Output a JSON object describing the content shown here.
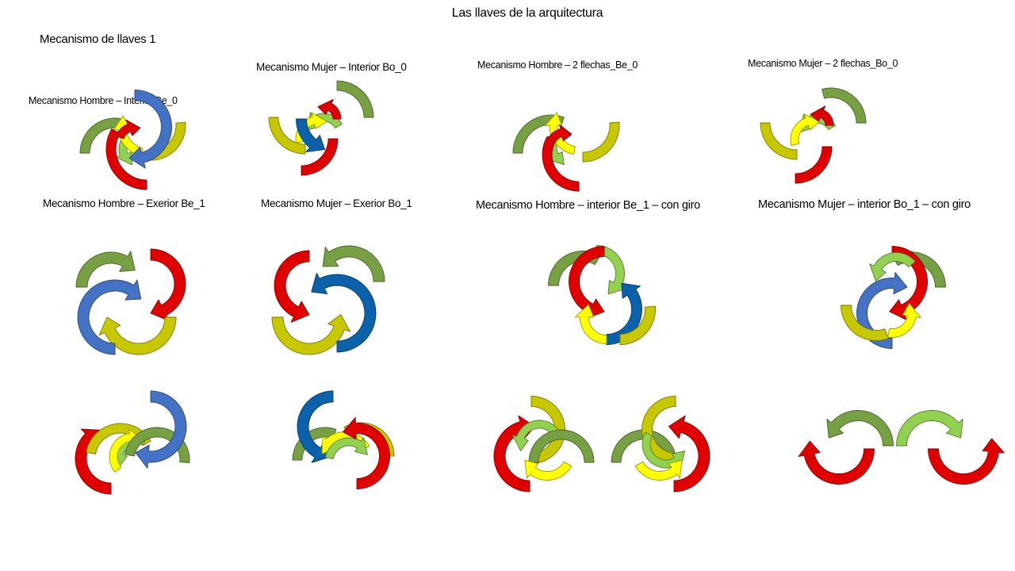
{
  "title": "Las llaves de la arquitectura",
  "subtitle": "Mecanismo de llaves 1",
  "colors": {
    "green": "#77a043",
    "light_green": "#92d050",
    "yellow": "#ffff00",
    "olive_yellow": "#c8c800",
    "red": "#e00000",
    "blue": "#4472c4",
    "dark_blue": "#0b62aa"
  },
  "mechanisms": [
    {
      "label": "Mecanismo Hombre – Interior Be_0"
    },
    {
      "label": "Mecanismo Mujer – Interior Bo_0"
    },
    {
      "label": "Mecanismo Hombre – 2 flechas_Be_0"
    },
    {
      "label": "Mecanismo Mujer – 2 flechas_Bo_0"
    },
    {
      "label": "Mecanismo Hombre – Exerior Be_1"
    },
    {
      "label": "Mecanismo Mujer – Exerior Bo_1"
    },
    {
      "label": "Mecanismo Hombre – interior Be_1 – con giro"
    },
    {
      "label": "Mecanismo Mujer – interior  Bo_1 – con giro"
    }
  ]
}
